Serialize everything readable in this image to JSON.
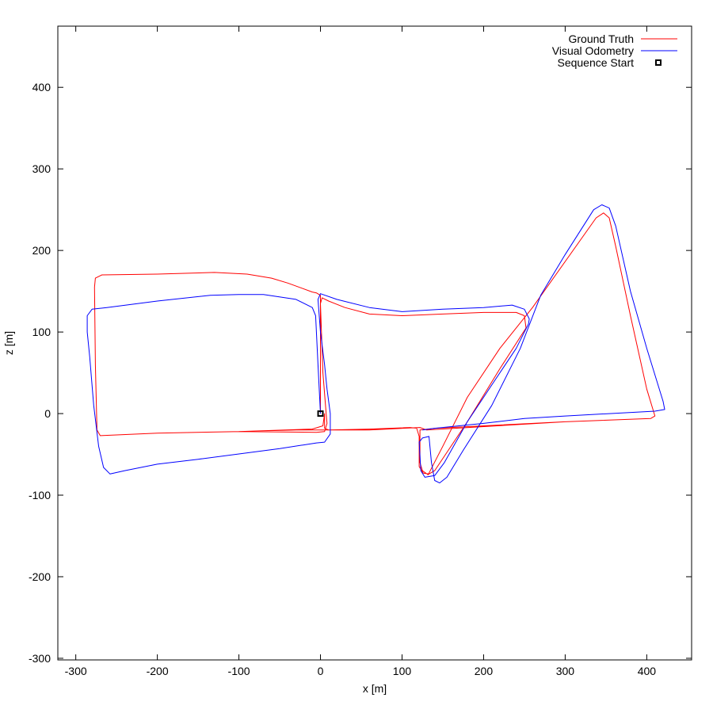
{
  "chart_data": {
    "type": "line",
    "title": "",
    "xlabel": "x [m]",
    "ylabel": "z [m]",
    "xlim": [
      -322,
      455
    ],
    "ylim": [
      -302,
      475
    ],
    "xticks": [
      -300,
      -200,
      -100,
      0,
      100,
      200,
      300,
      400
    ],
    "yticks": [
      -300,
      -200,
      -100,
      0,
      100,
      200,
      300,
      400
    ],
    "grid": false,
    "legend_position": "top-right",
    "series": [
      {
        "name": "Ground Truth",
        "color": "#ff0000",
        "points": [
          [
            0,
            0
          ],
          [
            0,
            145
          ],
          [
            -5,
            148
          ],
          [
            -10,
            149
          ],
          [
            -40,
            160
          ],
          [
            -60,
            166
          ],
          [
            -90,
            171
          ],
          [
            -130,
            173
          ],
          [
            -200,
            171
          ],
          [
            -268,
            170
          ],
          [
            -276,
            166
          ],
          [
            -277,
            155
          ],
          [
            -276,
            60
          ],
          [
            -274,
            -20
          ],
          [
            -270,
            -27
          ],
          [
            -200,
            -24
          ],
          [
            -100,
            -22
          ],
          [
            -10,
            -19
          ],
          [
            3,
            -15
          ],
          [
            5,
            0
          ],
          [
            5,
            -18
          ],
          [
            10,
            -20
          ],
          [
            60,
            -19
          ],
          [
            110,
            -17
          ],
          [
            118,
            -18
          ],
          [
            121,
            -28
          ],
          [
            121,
            -65
          ],
          [
            126,
            -73
          ],
          [
            133,
            -74
          ],
          [
            140,
            -70
          ],
          [
            180,
            -10
          ],
          [
            220,
            55
          ],
          [
            252,
            105
          ],
          [
            250,
            120
          ],
          [
            240,
            124
          ],
          [
            200,
            124
          ],
          [
            150,
            122
          ],
          [
            100,
            120
          ],
          [
            60,
            122
          ],
          [
            30,
            130
          ],
          [
            10,
            138
          ],
          [
            2,
            142
          ],
          [
            0,
            135
          ],
          [
            3,
            50
          ],
          [
            7,
            0
          ],
          [
            8,
            -12
          ],
          [
            5,
            -22
          ],
          [
            -5,
            -23
          ],
          [
            -100,
            -22
          ],
          [
            -30,
            -20
          ],
          [
            60,
            -20
          ],
          [
            122,
            -17
          ],
          [
            130,
            -20
          ],
          [
            200,
            -16
          ],
          [
            300,
            -10
          ],
          [
            405,
            -6
          ],
          [
            410,
            -3
          ],
          [
            400,
            30
          ],
          [
            380,
            120
          ],
          [
            362,
            205
          ],
          [
            354,
            240
          ],
          [
            347,
            246
          ],
          [
            338,
            240
          ],
          [
            260,
            130
          ],
          [
            220,
            80
          ],
          [
            180,
            20
          ],
          [
            150,
            -40
          ],
          [
            132,
            -75
          ],
          [
            125,
            -70
          ],
          [
            122,
            -60
          ],
          [
            122,
            -20
          ],
          [
            140,
            -18
          ],
          [
            300,
            -10
          ]
        ]
      },
      {
        "name": "Visual Odometry",
        "color": "#0000ff",
        "points": [
          [
            0,
            0
          ],
          [
            -3,
            60
          ],
          [
            -6,
            120
          ],
          [
            -10,
            130
          ],
          [
            -30,
            140
          ],
          [
            -70,
            146
          ],
          [
            -100,
            146
          ],
          [
            -135,
            145
          ],
          [
            -200,
            138
          ],
          [
            -262,
            130
          ],
          [
            -280,
            128
          ],
          [
            -286,
            120
          ],
          [
            -286,
            100
          ],
          [
            -283,
            70
          ],
          [
            -278,
            10
          ],
          [
            -272,
            -40
          ],
          [
            -266,
            -66
          ],
          [
            -258,
            -74
          ],
          [
            -240,
            -70
          ],
          [
            -200,
            -62
          ],
          [
            -150,
            -56
          ],
          [
            -50,
            -43
          ],
          [
            -5,
            -36
          ],
          [
            5,
            -35
          ],
          [
            12,
            -25
          ],
          [
            12,
            0
          ],
          [
            8,
            30
          ],
          [
            5,
            60
          ],
          [
            0,
            100
          ],
          [
            -3,
            140
          ],
          [
            0,
            147
          ],
          [
            20,
            140
          ],
          [
            60,
            130
          ],
          [
            100,
            125
          ],
          [
            150,
            128
          ],
          [
            200,
            130
          ],
          [
            235,
            133
          ],
          [
            250,
            128
          ],
          [
            256,
            116
          ],
          [
            255,
            110
          ],
          [
            240,
            80
          ],
          [
            210,
            35
          ],
          [
            180,
            -10
          ],
          [
            152,
            -60
          ],
          [
            140,
            -76
          ],
          [
            128,
            -78
          ],
          [
            123,
            -70
          ],
          [
            121,
            -35
          ],
          [
            125,
            -30
          ],
          [
            133,
            -28
          ],
          [
            136,
            -60
          ],
          [
            140,
            -82
          ],
          [
            146,
            -85
          ],
          [
            155,
            -78
          ],
          [
            175,
            -45
          ],
          [
            210,
            10
          ],
          [
            245,
            80
          ],
          [
            270,
            145
          ],
          [
            300,
            195
          ],
          [
            335,
            250
          ],
          [
            345,
            256
          ],
          [
            354,
            252
          ],
          [
            362,
            230
          ],
          [
            380,
            150
          ],
          [
            400,
            80
          ],
          [
            420,
            15
          ],
          [
            422,
            5
          ],
          [
            410,
            3
          ],
          [
            300,
            -3
          ],
          [
            250,
            -6
          ],
          [
            200,
            -12
          ],
          [
            140,
            -18
          ],
          [
            125,
            -20
          ]
        ]
      }
    ],
    "markers": [
      {
        "name": "Sequence Start",
        "x": 0,
        "y": 0
      }
    ]
  }
}
